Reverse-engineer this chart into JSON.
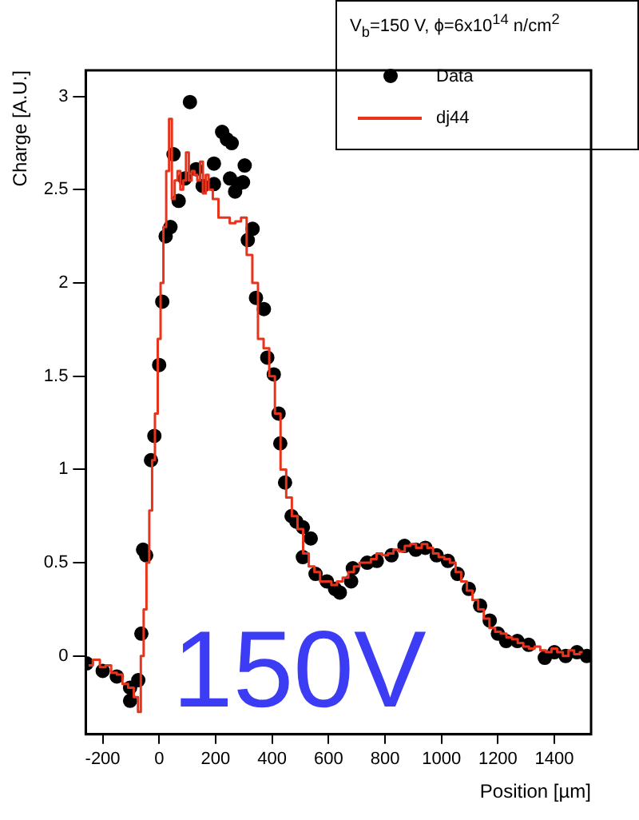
{
  "chart_data": {
    "type": "scatter",
    "xlabel": "Position [µm]",
    "ylabel": "Charge [A.U.]",
    "xlim": [
      -260,
      1530
    ],
    "xticks": [
      -200,
      0,
      200,
      400,
      600,
      800,
      1000,
      1200,
      1400
    ],
    "ylim": [
      -0.42,
      3.14
    ],
    "yticks": [
      0,
      0.5,
      1,
      1.5,
      2,
      2.5,
      3
    ],
    "legend": "top right",
    "legend_title": "V$_{b}$=150 V, ϕ=6x10$^{14}$ n/cm$^{2}$",
    "annotations": [
      "150V"
    ],
    "series": [
      {
        "name": "Data",
        "marker": "circle",
        "color": "#000000",
        "x": [
          -257,
          -200,
          -150,
          -103,
          -74,
          -103,
          -63,
          -57,
          -46,
          -29,
          -17,
          0,
          11,
          23,
          40,
          69,
          51,
          109,
          91,
          131,
          154,
          194,
          194,
          223,
          240,
          257,
          251,
          280,
          297,
          303,
          269,
          331,
          314,
          343,
          371,
          383,
          406,
          423,
          429,
          446,
          469,
          486,
          509,
          537,
          509,
          554,
          594,
          623,
          640,
          680,
          686,
          737,
          771,
          823,
          869,
          909,
          943,
          983,
          1023,
          1057,
          1097,
          1137,
          1171,
          1200,
          1229,
          1269,
          1309,
          1366,
          1400,
          1440,
          1480,
          1515
        ],
        "values": [
          -0.04,
          -0.08,
          -0.11,
          -0.17,
          -0.13,
          -0.24,
          0.12,
          0.57,
          0.54,
          1.05,
          1.18,
          1.56,
          1.9,
          2.25,
          2.3,
          2.44,
          2.69,
          2.97,
          2.56,
          2.61,
          2.52,
          2.64,
          2.53,
          2.81,
          2.77,
          2.75,
          2.56,
          2.53,
          2.54,
          2.63,
          2.49,
          2.29,
          2.23,
          1.92,
          1.86,
          1.6,
          1.51,
          1.3,
          1.14,
          0.93,
          0.75,
          0.72,
          0.69,
          0.63,
          0.53,
          0.44,
          0.4,
          0.36,
          0.34,
          0.4,
          0.47,
          0.5,
          0.51,
          0.54,
          0.59,
          0.57,
          0.58,
          0.54,
          0.51,
          0.44,
          0.36,
          0.27,
          0.19,
          0.12,
          0.08,
          0.08,
          0.06,
          -0.01,
          0.02,
          0.0,
          0.02,
          0.0
        ]
      },
      {
        "name": "dj44",
        "type": "step",
        "marker": "none",
        "line_style": "solid",
        "color": "#e8341c",
        "x": [
          -250,
          -220,
          -200,
          -180,
          -160,
          -140,
          -120,
          -100,
          -80,
          -70,
          -60,
          -50,
          -40,
          -30,
          -20,
          -10,
          0,
          10,
          20,
          30,
          40,
          50,
          60,
          70,
          80,
          90,
          100,
          110,
          120,
          130,
          140,
          150,
          160,
          170,
          180,
          200,
          220,
          240,
          260,
          280,
          300,
          320,
          340,
          360,
          380,
          400,
          420,
          440,
          460,
          480,
          500,
          520,
          540,
          560,
          580,
          600,
          620,
          640,
          660,
          680,
          700,
          720,
          740,
          760,
          780,
          800,
          820,
          840,
          860,
          880,
          900,
          920,
          940,
          960,
          980,
          1000,
          1020,
          1040,
          1060,
          1080,
          1100,
          1120,
          1140,
          1160,
          1180,
          1200,
          1220,
          1240,
          1260,
          1280,
          1300,
          1320,
          1340,
          1360,
          1380,
          1400,
          1420,
          1440,
          1460,
          1480,
          1500
        ],
        "values": [
          -0.05,
          -0.02,
          -0.06,
          -0.05,
          -0.09,
          -0.1,
          -0.15,
          -0.17,
          -0.22,
          -0.3,
          0.0,
          0.25,
          0.5,
          0.78,
          1.05,
          1.3,
          1.7,
          2.0,
          2.3,
          2.6,
          2.88,
          2.45,
          2.55,
          2.6,
          2.5,
          2.55,
          2.7,
          2.55,
          2.6,
          2.58,
          2.55,
          2.65,
          2.48,
          2.58,
          2.5,
          2.45,
          2.35,
          2.35,
          2.32,
          2.33,
          2.35,
          2.15,
          2.0,
          1.7,
          1.65,
          1.5,
          1.3,
          1.0,
          0.85,
          0.75,
          0.68,
          0.55,
          0.48,
          0.45,
          0.4,
          0.4,
          0.38,
          0.4,
          0.42,
          0.45,
          0.48,
          0.5,
          0.5,
          0.52,
          0.55,
          0.54,
          0.55,
          0.57,
          0.56,
          0.59,
          0.6,
          0.58,
          0.6,
          0.58,
          0.55,
          0.53,
          0.52,
          0.5,
          0.45,
          0.4,
          0.35,
          0.3,
          0.25,
          0.2,
          0.15,
          0.13,
          0.12,
          0.1,
          0.09,
          0.07,
          0.05,
          0.04,
          0.05,
          0.03,
          0.02,
          0.04,
          0.02,
          0.0,
          0.03,
          0.01,
          0.02
        ]
      }
    ]
  }
}
